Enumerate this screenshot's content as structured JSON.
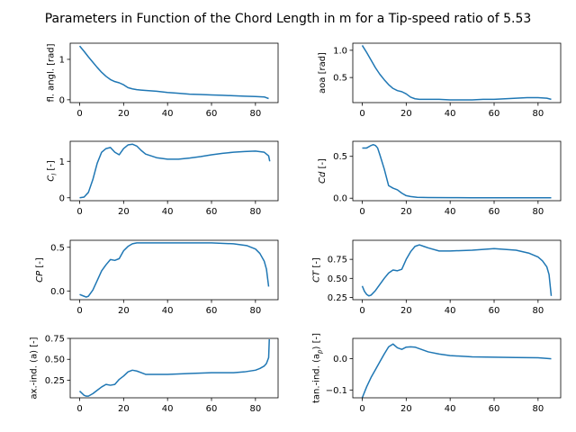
{
  "figure": {
    "title": "Parameters in Function of the Chord Length in m for a Tip-speed ratio of 5.53"
  },
  "colors": {
    "line": "#1f77b4",
    "axes": "#000000",
    "background": "#ffffff"
  },
  "chart_data": [
    {
      "type": "line",
      "ylabel": "fl. angl. [rad]",
      "xlim": [
        -4.3,
        90.3
      ],
      "ylim": [
        -0.07,
        1.4
      ],
      "xticks": [
        0,
        20,
        40,
        60,
        80
      ],
      "yticks": [
        0,
        1
      ],
      "x": [
        0,
        2,
        4,
        6,
        8,
        10,
        12,
        14,
        16,
        18,
        20,
        22,
        24,
        26,
        28,
        30,
        35,
        40,
        45,
        50,
        55,
        60,
        65,
        70,
        75,
        80,
        84,
        86
      ],
      "y": [
        1.33,
        1.2,
        1.06,
        0.93,
        0.8,
        0.68,
        0.58,
        0.5,
        0.45,
        0.42,
        0.37,
        0.3,
        0.27,
        0.25,
        0.24,
        0.23,
        0.21,
        0.18,
        0.16,
        0.14,
        0.13,
        0.12,
        0.11,
        0.1,
        0.09,
        0.08,
        0.07,
        0.03
      ]
    },
    {
      "type": "line",
      "ylabel": "aoa [rad]",
      "xlim": [
        -4.3,
        90.3
      ],
      "ylim": [
        0.04,
        1.13
      ],
      "xticks": [
        0,
        20,
        40,
        60,
        80
      ],
      "yticks": [
        0.5,
        1.0
      ],
      "yticklabels": [
        "0.5",
        "1.0"
      ],
      "x": [
        0,
        2,
        4,
        6,
        8,
        10,
        12,
        14,
        16,
        18,
        20,
        22,
        24,
        26,
        30,
        35,
        40,
        45,
        50,
        55,
        60,
        65,
        70,
        75,
        80,
        84,
        86
      ],
      "y": [
        1.09,
        0.96,
        0.82,
        0.68,
        0.56,
        0.46,
        0.37,
        0.3,
        0.26,
        0.24,
        0.2,
        0.14,
        0.11,
        0.1,
        0.1,
        0.1,
        0.09,
        0.09,
        0.09,
        0.1,
        0.1,
        0.11,
        0.12,
        0.13,
        0.13,
        0.12,
        0.1
      ]
    },
    {
      "type": "line",
      "ylabel": "$C_l$ [-]",
      "ylabel_parts": [
        "C",
        "l",
        " [-]"
      ],
      "xlim": [
        -4.3,
        90.3
      ],
      "ylim": [
        -0.08,
        1.55
      ],
      "xticks": [
        0,
        20,
        40,
        60,
        80
      ],
      "yticks": [
        0,
        1
      ],
      "x": [
        0,
        2,
        4,
        6,
        8,
        10,
        12,
        14,
        16,
        18,
        20,
        22,
        24,
        26,
        28,
        30,
        35,
        40,
        45,
        50,
        55,
        60,
        65,
        70,
        75,
        80,
        84,
        86,
        86.5
      ],
      "y": [
        0.0,
        0.02,
        0.15,
        0.5,
        0.95,
        1.25,
        1.35,
        1.38,
        1.25,
        1.18,
        1.35,
        1.45,
        1.47,
        1.42,
        1.3,
        1.2,
        1.1,
        1.06,
        1.06,
        1.09,
        1.13,
        1.18,
        1.22,
        1.25,
        1.27,
        1.28,
        1.25,
        1.15,
        1.0
      ]
    },
    {
      "type": "line",
      "ylabel": "$Cd$ [-]",
      "ylabel_parts": [
        "Cd",
        "",
        " [-]"
      ],
      "xlim": [
        -4.3,
        90.3
      ],
      "ylim": [
        -0.03,
        0.68
      ],
      "xticks": [
        0,
        20,
        40,
        60,
        80
      ],
      "yticks": [
        0.0,
        0.5
      ],
      "yticklabels": [
        "0.0",
        "0.5"
      ],
      "x": [
        0,
        2,
        4,
        5,
        6,
        7,
        8,
        10,
        12,
        14,
        16,
        18,
        20,
        22,
        25,
        30,
        40,
        50,
        60,
        70,
        80,
        86
      ],
      "y": [
        0.6,
        0.6,
        0.63,
        0.64,
        0.63,
        0.6,
        0.52,
        0.35,
        0.15,
        0.12,
        0.1,
        0.06,
        0.03,
        0.02,
        0.01,
        0.008,
        0.006,
        0.005,
        0.005,
        0.005,
        0.005,
        0.005
      ]
    },
    {
      "type": "line",
      "ylabel": "$CP$ [-]",
      "ylabel_parts": [
        "CP",
        "",
        " [-]"
      ],
      "xlim": [
        -4.3,
        90.3
      ],
      "ylim": [
        -0.1,
        0.58
      ],
      "xticks": [
        0,
        20,
        40,
        60,
        80
      ],
      "yticks": [
        0.0,
        0.5
      ],
      "yticklabels": [
        "0.0",
        "0.5"
      ],
      "x": [
        0,
        2,
        3,
        4,
        6,
        8,
        10,
        12,
        14,
        16,
        18,
        20,
        22,
        24,
        26,
        30,
        40,
        50,
        60,
        70,
        76,
        80,
        82,
        84,
        85,
        86
      ],
      "y": [
        -0.04,
        -0.06,
        -0.07,
        -0.06,
        0.01,
        0.12,
        0.23,
        0.3,
        0.36,
        0.35,
        0.37,
        0.46,
        0.51,
        0.54,
        0.55,
        0.55,
        0.55,
        0.55,
        0.55,
        0.54,
        0.52,
        0.48,
        0.43,
        0.34,
        0.25,
        0.05
      ]
    },
    {
      "type": "line",
      "ylabel": "$CT$ [-]",
      "ylabel_parts": [
        "CT",
        "",
        " [-]"
      ],
      "xlim": [
        -4.3,
        90.3
      ],
      "ylim": [
        0.22,
        1.0
      ],
      "xticks": [
        0,
        20,
        40,
        60,
        80
      ],
      "yticks": [
        0.25,
        0.5,
        0.75
      ],
      "yticklabels": [
        "0.25",
        "0.50",
        "0.75"
      ],
      "x": [
        0,
        1,
        2,
        3,
        4,
        6,
        8,
        10,
        12,
        14,
        16,
        18,
        20,
        22,
        24,
        26,
        28,
        30,
        35,
        40,
        50,
        60,
        70,
        76,
        80,
        82,
        84,
        85,
        86
      ],
      "y": [
        0.4,
        0.33,
        0.29,
        0.27,
        0.28,
        0.34,
        0.42,
        0.5,
        0.57,
        0.61,
        0.6,
        0.62,
        0.75,
        0.85,
        0.92,
        0.94,
        0.92,
        0.9,
        0.86,
        0.86,
        0.87,
        0.89,
        0.87,
        0.83,
        0.78,
        0.73,
        0.65,
        0.55,
        0.27
      ]
    },
    {
      "type": "line",
      "ylabel": "ax.-ind. (a) [-]",
      "xlim": [
        -4.3,
        90.3
      ],
      "ylim": [
        0.04,
        0.75
      ],
      "xticks": [
        0,
        20,
        40,
        60,
        80
      ],
      "yticks": [
        0.25,
        0.5,
        0.75
      ],
      "yticklabels": [
        "0.25",
        "0.50",
        "0.75"
      ],
      "x": [
        0,
        2,
        3,
        4,
        6,
        8,
        10,
        12,
        14,
        16,
        18,
        20,
        22,
        24,
        26,
        28,
        30,
        35,
        40,
        50,
        60,
        70,
        75,
        80,
        82,
        84,
        85,
        86,
        86.3
      ],
      "y": [
        0.12,
        0.07,
        0.06,
        0.06,
        0.09,
        0.13,
        0.17,
        0.2,
        0.19,
        0.2,
        0.26,
        0.3,
        0.35,
        0.37,
        0.36,
        0.34,
        0.32,
        0.32,
        0.32,
        0.33,
        0.34,
        0.34,
        0.35,
        0.37,
        0.39,
        0.42,
        0.45,
        0.52,
        0.74
      ]
    },
    {
      "type": "line",
      "ylabel": "tan.-ind. ($a_p$) [-]",
      "ylabel_parts": [
        "tan.-ind. (a",
        "p",
        ") [-]"
      ],
      "xlim": [
        -4.3,
        90.3
      ],
      "ylim": [
        -0.125,
        0.065
      ],
      "xticks": [
        0,
        20,
        40,
        60,
        80
      ],
      "yticks": [
        -0.1,
        0.0
      ],
      "yticklabels": [
        "−0.1",
        "0.0"
      ],
      "x": [
        0,
        2,
        4,
        6,
        8,
        10,
        12,
        14,
        16,
        18,
        20,
        22,
        24,
        26,
        28,
        30,
        35,
        40,
        50,
        60,
        70,
        80,
        86
      ],
      "y": [
        -0.125,
        -0.09,
        -0.06,
        -0.035,
        -0.01,
        0.015,
        0.038,
        0.047,
        0.035,
        0.03,
        0.037,
        0.038,
        0.037,
        0.032,
        0.027,
        0.022,
        0.015,
        0.01,
        0.006,
        0.005,
        0.004,
        0.003,
        0.0
      ]
    }
  ]
}
